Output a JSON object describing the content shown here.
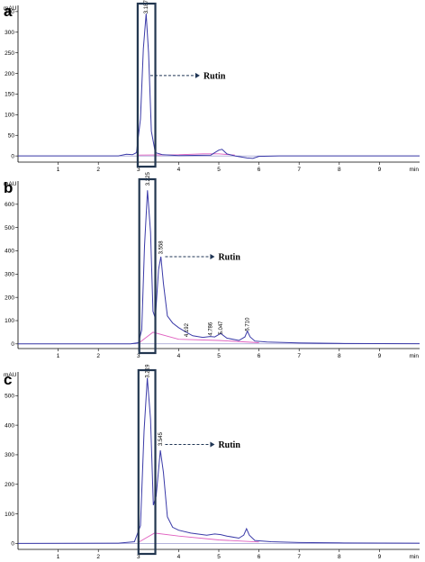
{
  "chart_data": [
    {
      "type": "line",
      "panel_label": "a",
      "y_unit": "mAU",
      "x_unit": "min",
      "xlim": [
        0,
        10
      ],
      "ylim": [
        -15,
        365
      ],
      "y_ticks": [
        0,
        50,
        100,
        150,
        200,
        250,
        300,
        350
      ],
      "x_ticks": [
        1,
        2,
        3,
        4,
        5,
        6,
        7,
        8,
        9
      ],
      "peak_labels": [
        {
          "x": 3.187,
          "y": 345,
          "text": "3.187"
        }
      ],
      "annotation": {
        "text": "Rutin",
        "x": 3.25,
        "y": 195
      },
      "highlight_box": {
        "x_from": 2.98,
        "x_to": 3.42
      },
      "chromatogram": [
        [
          0,
          0
        ],
        [
          2.5,
          0
        ],
        [
          2.7,
          4
        ],
        [
          2.85,
          3
        ],
        [
          2.95,
          8
        ],
        [
          3.05,
          90
        ],
        [
          3.12,
          260
        ],
        [
          3.19,
          345
        ],
        [
          3.25,
          250
        ],
        [
          3.32,
          60
        ],
        [
          3.42,
          8
        ],
        [
          3.6,
          3
        ],
        [
          4.0,
          1
        ],
        [
          4.8,
          2
        ],
        [
          5.0,
          14
        ],
        [
          5.08,
          16
        ],
        [
          5.2,
          5
        ],
        [
          5.4,
          0
        ],
        [
          5.7,
          -5
        ],
        [
          5.85,
          -6
        ],
        [
          6.0,
          -1
        ],
        [
          6.5,
          0
        ],
        [
          10,
          0
        ]
      ],
      "baseline": [
        [
          3.0,
          2
        ],
        [
          4.0,
          3
        ],
        [
          4.6,
          5
        ],
        [
          5.0,
          5
        ],
        [
          5.4,
          2
        ]
      ]
    },
    {
      "type": "line",
      "panel_label": "b",
      "y_unit": "mAU",
      "x_unit": "min",
      "xlim": [
        0,
        10
      ],
      "ylim": [
        -20,
        700
      ],
      "y_ticks": [
        0,
        100,
        200,
        300,
        400,
        500,
        600
      ],
      "x_ticks": [
        1,
        2,
        3,
        4,
        5,
        6,
        7,
        8,
        9
      ],
      "peak_labels": [
        {
          "x": 3.225,
          "y": 680,
          "text": "3.225"
        },
        {
          "x": 3.558,
          "y": 385,
          "text": "3.558"
        },
        {
          "x": 4.192,
          "y": 30,
          "text": "4.192"
        },
        {
          "x": 4.786,
          "y": 35,
          "text": "4.786"
        },
        {
          "x": 5.047,
          "y": 40,
          "text": "5.047"
        },
        {
          "x": 5.71,
          "y": 55,
          "text": "5.710"
        }
      ],
      "annotation": {
        "text": "Rutin",
        "x": 3.62,
        "y": 375
      },
      "highlight_box": {
        "x_from": 3.02,
        "x_to": 3.42
      },
      "chromatogram": [
        [
          0,
          0
        ],
        [
          2.8,
          0
        ],
        [
          3.0,
          5
        ],
        [
          3.08,
          60
        ],
        [
          3.15,
          420
        ],
        [
          3.225,
          660
        ],
        [
          3.3,
          480
        ],
        [
          3.36,
          140
        ],
        [
          3.42,
          110
        ],
        [
          3.5,
          320
        ],
        [
          3.558,
          375
        ],
        [
          3.62,
          260
        ],
        [
          3.72,
          120
        ],
        [
          3.85,
          90
        ],
        [
          4.0,
          70
        ],
        [
          4.19,
          50
        ],
        [
          4.35,
          35
        ],
        [
          4.6,
          28
        ],
        [
          4.786,
          32
        ],
        [
          4.9,
          30
        ],
        [
          5.047,
          45
        ],
        [
          5.2,
          25
        ],
        [
          5.5,
          15
        ],
        [
          5.65,
          30
        ],
        [
          5.71,
          55
        ],
        [
          5.78,
          30
        ],
        [
          5.9,
          12
        ],
        [
          6.2,
          8
        ],
        [
          7.0,
          4
        ],
        [
          8.0,
          2
        ],
        [
          10,
          1
        ]
      ],
      "baseline": [
        [
          3.02,
          5
        ],
        [
          3.36,
          50
        ],
        [
          4.0,
          20
        ],
        [
          5.0,
          15
        ],
        [
          6.0,
          5
        ]
      ]
    },
    {
      "type": "line",
      "panel_label": "c",
      "y_unit": "mAU",
      "x_unit": "min",
      "xlim": [
        0,
        10
      ],
      "ylim": [
        -20,
        580
      ],
      "y_ticks": [
        0,
        100,
        200,
        300,
        400,
        500
      ],
      "x_ticks": [
        1,
        2,
        3,
        4,
        5,
        6,
        7,
        8,
        9
      ],
      "peak_labels": [
        {
          "x": 3.219,
          "y": 560,
          "text": "3.219"
        },
        {
          "x": 3.545,
          "y": 330,
          "text": "3.545"
        }
      ],
      "annotation": {
        "text": "Rutin",
        "x": 3.62,
        "y": 335
      },
      "highlight_box": {
        "x_from": 3.0,
        "x_to": 3.42
      },
      "chromatogram": [
        [
          0,
          0
        ],
        [
          2.5,
          1
        ],
        [
          2.9,
          6
        ],
        [
          3.05,
          60
        ],
        [
          3.14,
          380
        ],
        [
          3.219,
          560
        ],
        [
          3.3,
          420
        ],
        [
          3.37,
          130
        ],
        [
          3.44,
          160
        ],
        [
          3.545,
          315
        ],
        [
          3.62,
          240
        ],
        [
          3.72,
          90
        ],
        [
          3.85,
          55
        ],
        [
          4.0,
          45
        ],
        [
          4.3,
          35
        ],
        [
          4.7,
          28
        ],
        [
          4.9,
          32
        ],
        [
          5.05,
          30
        ],
        [
          5.2,
          25
        ],
        [
          5.5,
          18
        ],
        [
          5.62,
          28
        ],
        [
          5.69,
          50
        ],
        [
          5.76,
          28
        ],
        [
          5.9,
          10
        ],
        [
          6.3,
          6
        ],
        [
          7.0,
          3
        ],
        [
          8.0,
          2
        ],
        [
          10,
          1
        ]
      ],
      "baseline": [
        [
          3.0,
          4
        ],
        [
          3.4,
          35
        ],
        [
          4.0,
          25
        ],
        [
          5.0,
          12
        ],
        [
          6.0,
          5
        ]
      ]
    }
  ]
}
